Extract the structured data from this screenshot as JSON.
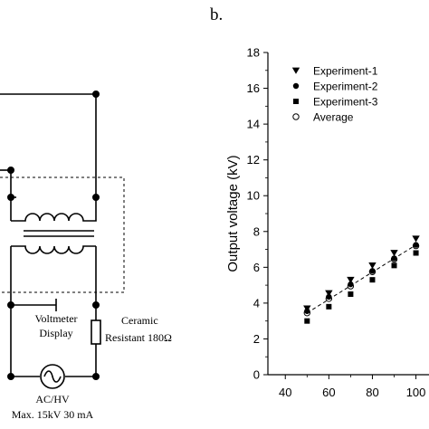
{
  "panel_label": "b.",
  "circuit": {
    "voltmeter_label_line1": "Voltmeter",
    "voltmeter_label_line2": "Display",
    "resistor_label_line1": "Ceramic",
    "resistor_label_line2": "Resistant 180Ω",
    "source_label_line1": "AC/HV",
    "source_label_line2": "Max. 15kV 30 mA"
  },
  "chart_data": {
    "type": "scatter",
    "title": "",
    "xlabel": "",
    "ylabel": "Output voltage (kV)",
    "xlim": [
      32,
      106
    ],
    "ylim": [
      0,
      18
    ],
    "xticks": [
      40,
      60,
      80,
      100
    ],
    "xtick_labels": [
      "40",
      "60",
      "80",
      "100"
    ],
    "yticks": [
      0,
      2,
      4,
      6,
      8,
      10,
      12,
      14,
      16,
      18
    ],
    "legend_position": "top-left",
    "series": [
      {
        "name": "Experiment-1",
        "marker": "triangle-down",
        "x": [
          50,
          60,
          70,
          80,
          90,
          100
        ],
        "y": [
          3.7,
          4.55,
          5.3,
          6.1,
          6.8,
          7.6
        ]
      },
      {
        "name": "Experiment-2",
        "marker": "circle-filled",
        "x": [
          50,
          60,
          70,
          80,
          90,
          100
        ],
        "y": [
          3.55,
          4.35,
          5.05,
          5.8,
          6.5,
          7.25
        ]
      },
      {
        "name": "Experiment-3",
        "marker": "square",
        "x": [
          50,
          60,
          70,
          80,
          90,
          100
        ],
        "y": [
          3.0,
          3.8,
          4.5,
          5.3,
          6.1,
          6.8
        ]
      },
      {
        "name": "Average",
        "marker": "circle-open",
        "x": [
          50,
          60,
          70,
          80,
          90,
          100
        ],
        "y": [
          3.45,
          4.25,
          4.95,
          5.75,
          6.45,
          7.2
        ]
      }
    ],
    "trendline": {
      "style": "dashed",
      "x": [
        50,
        100
      ],
      "y": [
        3.45,
        7.25
      ]
    }
  }
}
